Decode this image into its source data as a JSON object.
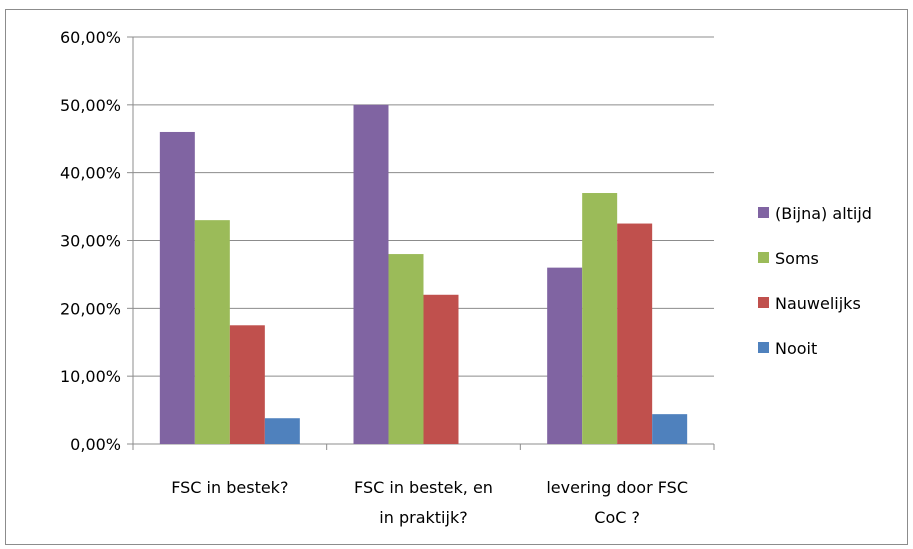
{
  "chart_data": {
    "type": "bar",
    "title": "",
    "xlabel": "",
    "ylabel": "",
    "ylim": [
      0,
      0.6
    ],
    "yticks": [
      "0,00%",
      "10,00%",
      "20,00%",
      "30,00%",
      "40,00%",
      "50,00%",
      "60,00%"
    ],
    "categories": [
      [
        "FSC in bestek?"
      ],
      [
        "FSC in bestek, en",
        "in praktijk?"
      ],
      [
        "levering door FSC",
        "CoC ?"
      ]
    ],
    "series": [
      {
        "name": "(Bijna) altijd",
        "color": "#8064a2",
        "values": [
          0.46,
          0.5,
          0.26
        ]
      },
      {
        "name": "Soms",
        "color": "#9bbb59",
        "values": [
          0.33,
          0.28,
          0.37
        ]
      },
      {
        "name": "Nauwelijks",
        "color": "#c0504d",
        "values": [
          0.175,
          0.22,
          0.325
        ]
      },
      {
        "name": "Nooit",
        "color": "#4f81bd",
        "values": [
          0.038,
          0.0,
          0.044
        ]
      }
    ],
    "grid": true,
    "legend": "right"
  }
}
